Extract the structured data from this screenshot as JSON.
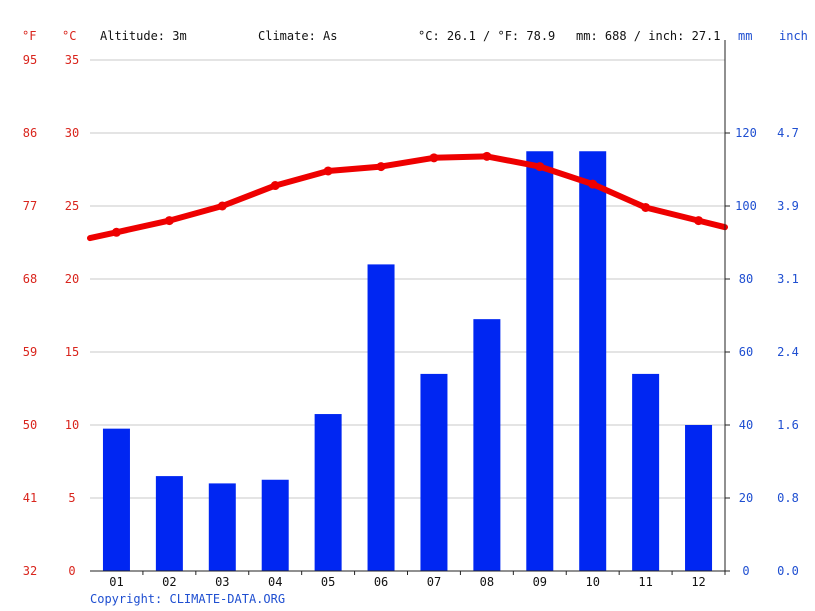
{
  "header": {
    "unit_f": "°F",
    "unit_c": "°C",
    "altitude": "Altitude: 3m",
    "climate": "Climate: As",
    "temp_avg": "°C: 26.1 / °F: 78.9",
    "precip_total": "mm: 688 / inch: 27.1",
    "unit_mm": "mm",
    "unit_inch": "inch"
  },
  "footer": {
    "copyright": "Copyright: CLIMATE-DATA.ORG"
  },
  "colors": {
    "temperature": "#ee0000",
    "precipitation": "#0026f2",
    "temp_axis": "#d9251d",
    "precip_axis": "#1f4fd1"
  },
  "chart_data": {
    "type": "bar",
    "categories": [
      "01",
      "02",
      "03",
      "04",
      "05",
      "06",
      "07",
      "08",
      "09",
      "10",
      "11",
      "12"
    ],
    "series": [
      {
        "values": [
          39,
          26,
          24,
          25,
          43,
          84,
          54,
          69,
          115,
          115,
          54,
          40
        ]
      },
      {
        "values": [
          23.2,
          24.0,
          25.0,
          26.4,
          27.4,
          27.7,
          28.3,
          28.4,
          27.7,
          26.5,
          24.9,
          24.0
        ]
      }
    ],
    "temp_c_ticks": [
      "0",
      "5",
      "10",
      "15",
      "20",
      "25",
      "30",
      "35"
    ],
    "temp_f_ticks": [
      "32",
      "41",
      "50",
      "59",
      "68",
      "77",
      "86",
      "95"
    ],
    "mm_ticks": [
      "0",
      "20",
      "40",
      "60",
      "80",
      "100",
      "120"
    ],
    "inch_ticks": [
      "0.0",
      "0.8",
      "1.6",
      "2.4",
      "3.1",
      "3.9",
      "4.7"
    ],
    "temp_c_range": [
      0,
      35
    ],
    "mm_range": [
      0,
      140
    ],
    "grid": true
  }
}
